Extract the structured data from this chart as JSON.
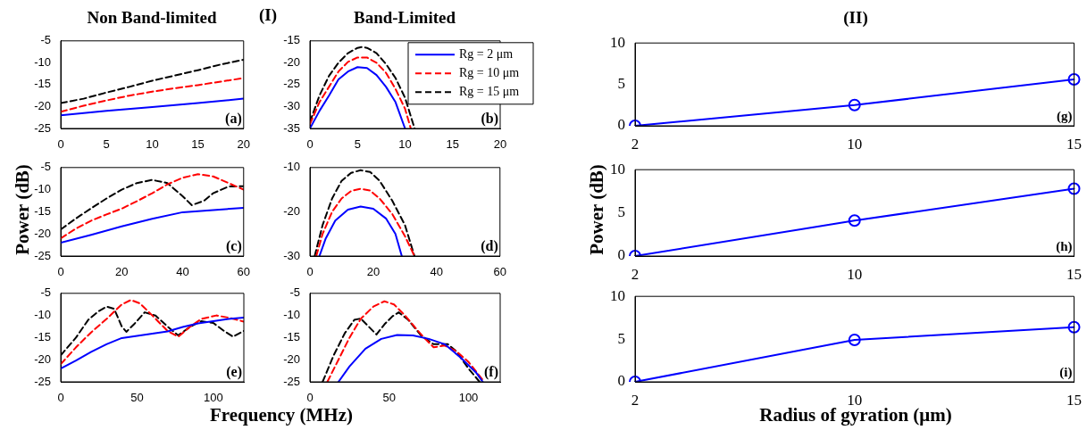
{
  "chart_data": [
    {
      "type": "line",
      "title": "Non Band-limited",
      "xlim": [
        0,
        20
      ],
      "xticks": [
        0,
        5,
        10,
        15,
        20
      ],
      "ylim": [
        -25,
        -5
      ],
      "yticks": [
        -25,
        -20,
        -15,
        -10,
        -5
      ],
      "grid": false,
      "marker": "none",
      "annotations": [
        "(a)"
      ],
      "series": [
        {
          "color": "#0000ff",
          "line_style": "solid",
          "x": [
            0,
            5,
            10,
            15,
            20
          ],
          "values": [
            -22,
            -21,
            -20.1,
            -19.2,
            -18.2
          ]
        },
        {
          "color": "#ff0000",
          "line_style": "dashed",
          "x": [
            0,
            2.5,
            5,
            7.5,
            10,
            12.5,
            15,
            17.5,
            20
          ],
          "values": [
            -21.2,
            -19.8,
            -18.6,
            -17.5,
            -16.6,
            -15.8,
            -15.1,
            -14.3,
            -13.5
          ]
        },
        {
          "color": "#000000",
          "line_style": "dashed",
          "x": [
            0,
            2.5,
            5,
            7.5,
            10,
            12.5,
            15,
            17.5,
            20
          ],
          "values": [
            -19.2,
            -18.2,
            -16.8,
            -15.5,
            -14.1,
            -12.9,
            -11.7,
            -10.4,
            -9.3
          ]
        }
      ]
    },
    {
      "type": "line",
      "title": "Band-Limited",
      "xlim": [
        0,
        20
      ],
      "xticks": [
        0,
        5,
        10,
        15,
        20
      ],
      "ylim": [
        -35,
        -15
      ],
      "yticks": [
        -35,
        -30,
        -25,
        -20,
        -15
      ],
      "grid": false,
      "marker": "none",
      "legend": "top right",
      "annotations": [
        "(b)",
        "(I)"
      ],
      "series": [
        {
          "name": "Rg = 2 μm",
          "color": "#0000ff",
          "line_style": "solid",
          "x": [
            0,
            1,
            2,
            3,
            4,
            5,
            6,
            7,
            8,
            9,
            10
          ],
          "values": [
            -35,
            -31,
            -27.5,
            -23.8,
            -22,
            -21,
            -21.2,
            -22.8,
            -25.5,
            -29,
            -35
          ]
        },
        {
          "name": "Rg = 10 μm",
          "color": "#ff0000",
          "line_style": "dashed",
          "x": [
            0,
            1,
            2,
            3,
            4,
            5,
            6,
            7,
            8,
            9,
            10,
            10.6
          ],
          "values": [
            -34,
            -29,
            -25.5,
            -22,
            -19.8,
            -18.8,
            -18.8,
            -20,
            -22.3,
            -26,
            -30.5,
            -35
          ]
        },
        {
          "name": "Rg = 15 μm",
          "color": "#000000",
          "line_style": "dashed",
          "x": [
            0,
            1,
            2,
            3,
            4,
            5,
            5.5,
            6,
            7,
            8,
            9,
            10,
            11
          ],
          "values": [
            -33.5,
            -27.5,
            -23,
            -20,
            -17.8,
            -16.6,
            -16.4,
            -16.6,
            -17.8,
            -20.3,
            -23.5,
            -28,
            -35
          ]
        }
      ]
    },
    {
      "type": "line",
      "ylabel": "Power (dB)",
      "xlim": [
        0,
        60
      ],
      "xticks": [
        0,
        20,
        40,
        60
      ],
      "ylim": [
        -25,
        -5
      ],
      "yticks": [
        -25,
        -20,
        -15,
        -10,
        -5
      ],
      "grid": false,
      "marker": "none",
      "annotations": [
        "(c)"
      ],
      "series": [
        {
          "color": "#0000ff",
          "line_style": "solid",
          "x": [
            0,
            10,
            20,
            30,
            40,
            50,
            60
          ],
          "values": [
            -22,
            -20.2,
            -18.3,
            -16.6,
            -15.1,
            -14.6,
            -14.1
          ]
        },
        {
          "color": "#ff0000",
          "line_style": "dashed",
          "x": [
            0,
            5,
            10,
            15,
            20,
            25,
            30,
            35,
            40,
            45,
            50,
            55,
            60
          ],
          "values": [
            -21,
            -18.8,
            -17,
            -15.6,
            -14.3,
            -12.6,
            -10.8,
            -8.8,
            -7.3,
            -6.5,
            -7,
            -8.5,
            -10
          ]
        },
        {
          "color": "#000000",
          "line_style": "dashed",
          "x": [
            0,
            5,
            10,
            15,
            20,
            25,
            30,
            35,
            40,
            43,
            47,
            50,
            55,
            60
          ],
          "values": [
            -19,
            -16.5,
            -14.2,
            -12,
            -10,
            -8.5,
            -7.8,
            -8.5,
            -11.5,
            -13.5,
            -12.5,
            -10.8,
            -9.3,
            -9.2
          ]
        }
      ]
    },
    {
      "type": "line",
      "xlim": [
        0,
        60
      ],
      "xticks": [
        0,
        20,
        40,
        60
      ],
      "ylim": [
        -30,
        -10
      ],
      "yticks": [
        -30,
        -20,
        -10
      ],
      "grid": false,
      "marker": "none",
      "annotations": [
        "(d)"
      ],
      "series": [
        {
          "color": "#0000ff",
          "line_style": "solid",
          "x": [
            3,
            5,
            8,
            12,
            16,
            20,
            24,
            27,
            29
          ],
          "values": [
            -30,
            -26,
            -22,
            -19.5,
            -18.8,
            -19.3,
            -21.5,
            -25,
            -30
          ]
        },
        {
          "color": "#ff0000",
          "line_style": "dashed",
          "x": [
            2,
            4,
            7,
            10,
            13,
            16,
            19,
            22,
            26,
            30,
            33
          ],
          "values": [
            -30,
            -25,
            -20,
            -17,
            -15.3,
            -14.8,
            -15.2,
            -17,
            -20.5,
            -25.5,
            -30
          ]
        },
        {
          "color": "#000000",
          "line_style": "dashed",
          "x": [
            1.5,
            4,
            7,
            10,
            13,
            16,
            19,
            22,
            26,
            30,
            33
          ],
          "values": [
            -30,
            -23,
            -17,
            -13,
            -11.2,
            -10.6,
            -11,
            -13,
            -17.5,
            -23,
            -30
          ]
        }
      ]
    },
    {
      "type": "line",
      "xlabel": "Frequency (MHz)",
      "xlim": [
        0,
        120
      ],
      "xticks": [
        0,
        50,
        100
      ],
      "ylim": [
        -25,
        -5
      ],
      "yticks": [
        -25,
        -20,
        -15,
        -10,
        -5
      ],
      "grid": false,
      "marker": "none",
      "annotations": [
        "(e)"
      ],
      "series": [
        {
          "color": "#0000ff",
          "line_style": "solid",
          "x": [
            0,
            10,
            20,
            30,
            40,
            50,
            60,
            70,
            80,
            90,
            100,
            110,
            120
          ],
          "values": [
            -22,
            -20.2,
            -18.2,
            -16.5,
            -15.1,
            -14.6,
            -14.1,
            -13.6,
            -12.6,
            -11.8,
            -11.3,
            -10.8,
            -10.5
          ]
        },
        {
          "color": "#ff0000",
          "line_style": "dashed",
          "x": [
            0,
            10,
            20,
            30,
            40,
            46,
            52,
            60,
            70,
            77,
            85,
            92,
            102,
            110,
            120
          ],
          "values": [
            -21,
            -17.2,
            -13.8,
            -10.8,
            -7.5,
            -6.5,
            -7.3,
            -10,
            -13.5,
            -14.8,
            -12.5,
            -10.8,
            -10,
            -10.5,
            -11.4
          ]
        },
        {
          "color": "#000000",
          "line_style": "dashed",
          "x": [
            0,
            10,
            18,
            25,
            30,
            35,
            40,
            43,
            48,
            55,
            62,
            70,
            77,
            85,
            92,
            100,
            107,
            113,
            120
          ],
          "values": [
            -19,
            -15,
            -11,
            -9,
            -8,
            -8.5,
            -12.5,
            -13.7,
            -12,
            -9.3,
            -10,
            -12.5,
            -14.5,
            -12.5,
            -11.3,
            -11.7,
            -13.5,
            -14.8,
            -13.5
          ]
        }
      ]
    },
    {
      "type": "line",
      "xlim": [
        0,
        120
      ],
      "xticks": [
        0,
        50,
        100
      ],
      "ylim": [
        -25,
        -5
      ],
      "yticks": [
        -25,
        -20,
        -15,
        -10,
        -5
      ],
      "grid": false,
      "marker": "none",
      "annotations": [
        "(f)"
      ],
      "series": [
        {
          "color": "#0000ff",
          "line_style": "solid",
          "x": [
            18,
            25,
            35,
            45,
            55,
            65,
            75,
            85,
            95,
            105,
            109
          ],
          "values": [
            -25,
            -21.5,
            -17.5,
            -15.3,
            -14.4,
            -14.5,
            -15.3,
            -16.5,
            -19.5,
            -23,
            -25
          ]
        },
        {
          "color": "#ff0000",
          "line_style": "dashed",
          "x": [
            11,
            18,
            25,
            32,
            40,
            47,
            53,
            60,
            67,
            72,
            78,
            85,
            92,
            100,
            110
          ],
          "values": [
            -25,
            -20,
            -15,
            -10.8,
            -8,
            -6.8,
            -7.5,
            -10,
            -13,
            -15,
            -17.2,
            -16.8,
            -18,
            -20.5,
            -25
          ]
        },
        {
          "color": "#000000",
          "line_style": "dashed",
          "x": [
            8,
            15,
            22,
            28,
            32,
            37,
            42,
            47,
            52,
            56,
            62,
            70,
            78,
            87,
            92,
            100,
            107
          ],
          "values": [
            -25,
            -19,
            -14,
            -11,
            -10.7,
            -12.5,
            -14.3,
            -12,
            -10.2,
            -9.3,
            -11,
            -14.5,
            -16.5,
            -16.5,
            -18,
            -22,
            -25
          ]
        }
      ]
    },
    {
      "type": "line",
      "title": "(II)",
      "categories": [
        "2",
        "10",
        "15"
      ],
      "ylim": [
        0,
        10
      ],
      "yticks": [
        0,
        5,
        10
      ],
      "grid": false,
      "marker": "circle",
      "annotations": [
        "(g)"
      ],
      "series": [
        {
          "color": "#0000ff",
          "line_style": "solid",
          "values": [
            0,
            2.5,
            5.6
          ]
        }
      ]
    },
    {
      "type": "line",
      "ylabel": "Power (dB)",
      "categories": [
        "2",
        "10",
        "15"
      ],
      "ylim": [
        0,
        10
      ],
      "yticks": [
        0,
        5,
        10
      ],
      "grid": false,
      "marker": "circle",
      "annotations": [
        "(h)"
      ],
      "series": [
        {
          "color": "#0000ff",
          "line_style": "solid",
          "values": [
            0,
            4.1,
            7.8
          ]
        }
      ]
    },
    {
      "type": "line",
      "xlabel": "Radius of gyration (μm)",
      "categories": [
        "2",
        "10",
        "15"
      ],
      "ylim": [
        0,
        10
      ],
      "yticks": [
        0,
        5,
        10
      ],
      "grid": false,
      "marker": "circle",
      "annotations": [
        "(i)"
      ],
      "series": [
        {
          "color": "#0000ff",
          "line_style": "solid",
          "values": [
            0,
            4.9,
            6.4
          ]
        }
      ]
    }
  ]
}
